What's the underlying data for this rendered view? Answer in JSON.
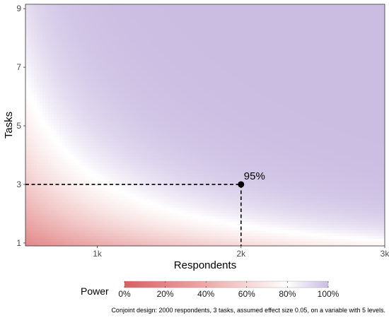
{
  "chart_data": {
    "type": "heatmap",
    "xlabel": "Respondents",
    "ylabel": "Tasks",
    "xlim": [
      500,
      3000
    ],
    "ylim": [
      0.9,
      9.15
    ],
    "x_ticks": [
      {
        "value": 1000,
        "label": "1k"
      },
      {
        "value": 2000,
        "label": "2k"
      },
      {
        "value": 3000,
        "label": "3k"
      }
    ],
    "y_ticks": [
      {
        "value": 1,
        "label": "1"
      },
      {
        "value": 3,
        "label": "3"
      },
      {
        "value": 5,
        "label": "5"
      },
      {
        "value": 7,
        "label": "7"
      },
      {
        "value": 9,
        "label": "9"
      }
    ],
    "z_metric": "Power",
    "color_scale": {
      "low": "#D95F5F",
      "mid": "#FFFFFF",
      "high": "#CBBDE2",
      "mid_value": 0.8
    },
    "highlight_point": {
      "x": 2000,
      "y": 3,
      "label": "95%"
    },
    "legend": {
      "title": "Power",
      "position": "bottom",
      "ticks": [
        {
          "value": 0,
          "label": "0%"
        },
        {
          "value": 0.2,
          "label": "20%"
        },
        {
          "value": 0.4,
          "label": "40%"
        },
        {
          "value": 0.6,
          "label": "60%"
        },
        {
          "value": 0.8,
          "label": "80%"
        },
        {
          "value": 1.0,
          "label": "100%"
        }
      ]
    },
    "grid": false
  },
  "caption": "Conjoint design: 2000 respondents, 3 tasks, assumed effect size 0.05, on a variable with 5 levels."
}
